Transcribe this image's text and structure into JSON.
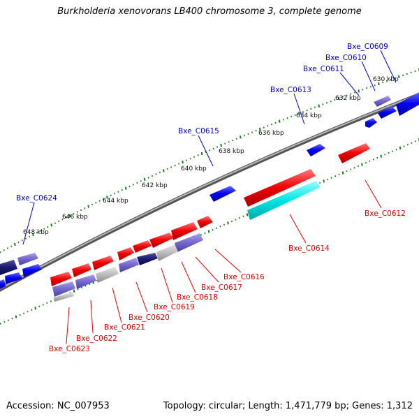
{
  "title": "Burkholderia xenovorans LB400 chromosome 3, complete genome",
  "footer": {
    "accession": "Accession: NC_007953",
    "topology": "Topology: circular; Length: 1,471,779 bp; Genes: 1,312"
  },
  "scale_labels": [
    "630 kbp",
    "632 kbp",
    "634 kbp",
    "636 kbp",
    "638 kbp",
    "640 kbp",
    "642 kbp",
    "644 kbp",
    "646 kbp",
    "648 kbp"
  ],
  "colors": {
    "forward_strand": "#0000ee",
    "reverse_strand": "#ee0000",
    "backbone": "#808080",
    "ticks": "#1a7a1a",
    "highlight_gene": "#00e5e5"
  },
  "genes_top": [
    {
      "name": "Bxe_C0609"
    },
    {
      "name": "Bxe_C0610"
    },
    {
      "name": "Bxe_C0611"
    },
    {
      "name": "Bxe_C0613"
    },
    {
      "name": "Bxe_C0615"
    },
    {
      "name": "Bxe_C0624"
    }
  ],
  "genes_bottom": [
    {
      "name": "Bxe_C0612"
    },
    {
      "name": "Bxe_C0614"
    },
    {
      "name": "Bxe_C0616"
    },
    {
      "name": "Bxe_C0617"
    },
    {
      "name": "Bxe_C0618"
    },
    {
      "name": "Bxe_C0619"
    },
    {
      "name": "Bxe_C0620"
    },
    {
      "name": "Bxe_C0621"
    },
    {
      "name": "Bxe_C0622"
    },
    {
      "name": "Bxe_C0623"
    }
  ]
}
